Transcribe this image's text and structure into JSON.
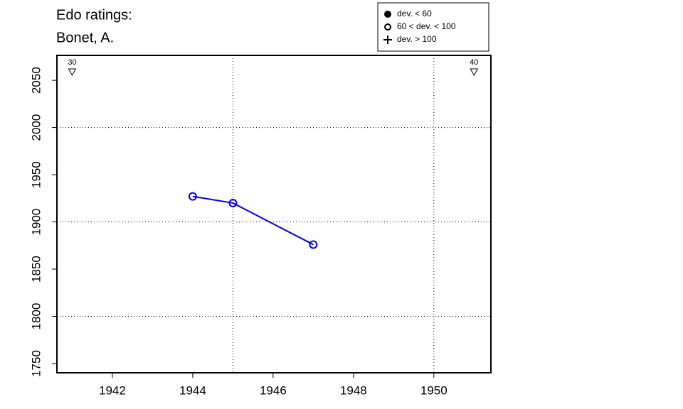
{
  "chart_data": {
    "type": "line",
    "title": [
      "Edo ratings:",
      "Bonet, A."
    ],
    "x": [
      1944,
      1945,
      1947
    ],
    "series": [
      {
        "color": "#0000ee",
        "marker": "open-circle",
        "values": [
          1927,
          1920,
          1876
        ]
      }
    ],
    "xlim": [
      1940.62,
      1951.42
    ],
    "xticks": [
      1942,
      1944,
      1946,
      1948,
      1950
    ],
    "ylim": [
      1740.2,
      2076.4
    ],
    "yticks": [
      1750,
      1800,
      1850,
      1900,
      1950,
      2000,
      2050
    ],
    "xgrid": [
      1945,
      1950
    ],
    "ygrid": [
      1800,
      1900,
      2000
    ],
    "annotations": [
      {
        "x": 1941,
        "label": "30"
      },
      {
        "x": 1951,
        "label": "40"
      }
    ],
    "legend": {
      "position": "top-right",
      "entries": [
        {
          "label": "dev. < 60",
          "marker": "filled-circle"
        },
        {
          "label": "60 < dev. < 100",
          "marker": "open-circle"
        },
        {
          "label": "dev. > 100",
          "marker": "plus"
        }
      ]
    }
  }
}
